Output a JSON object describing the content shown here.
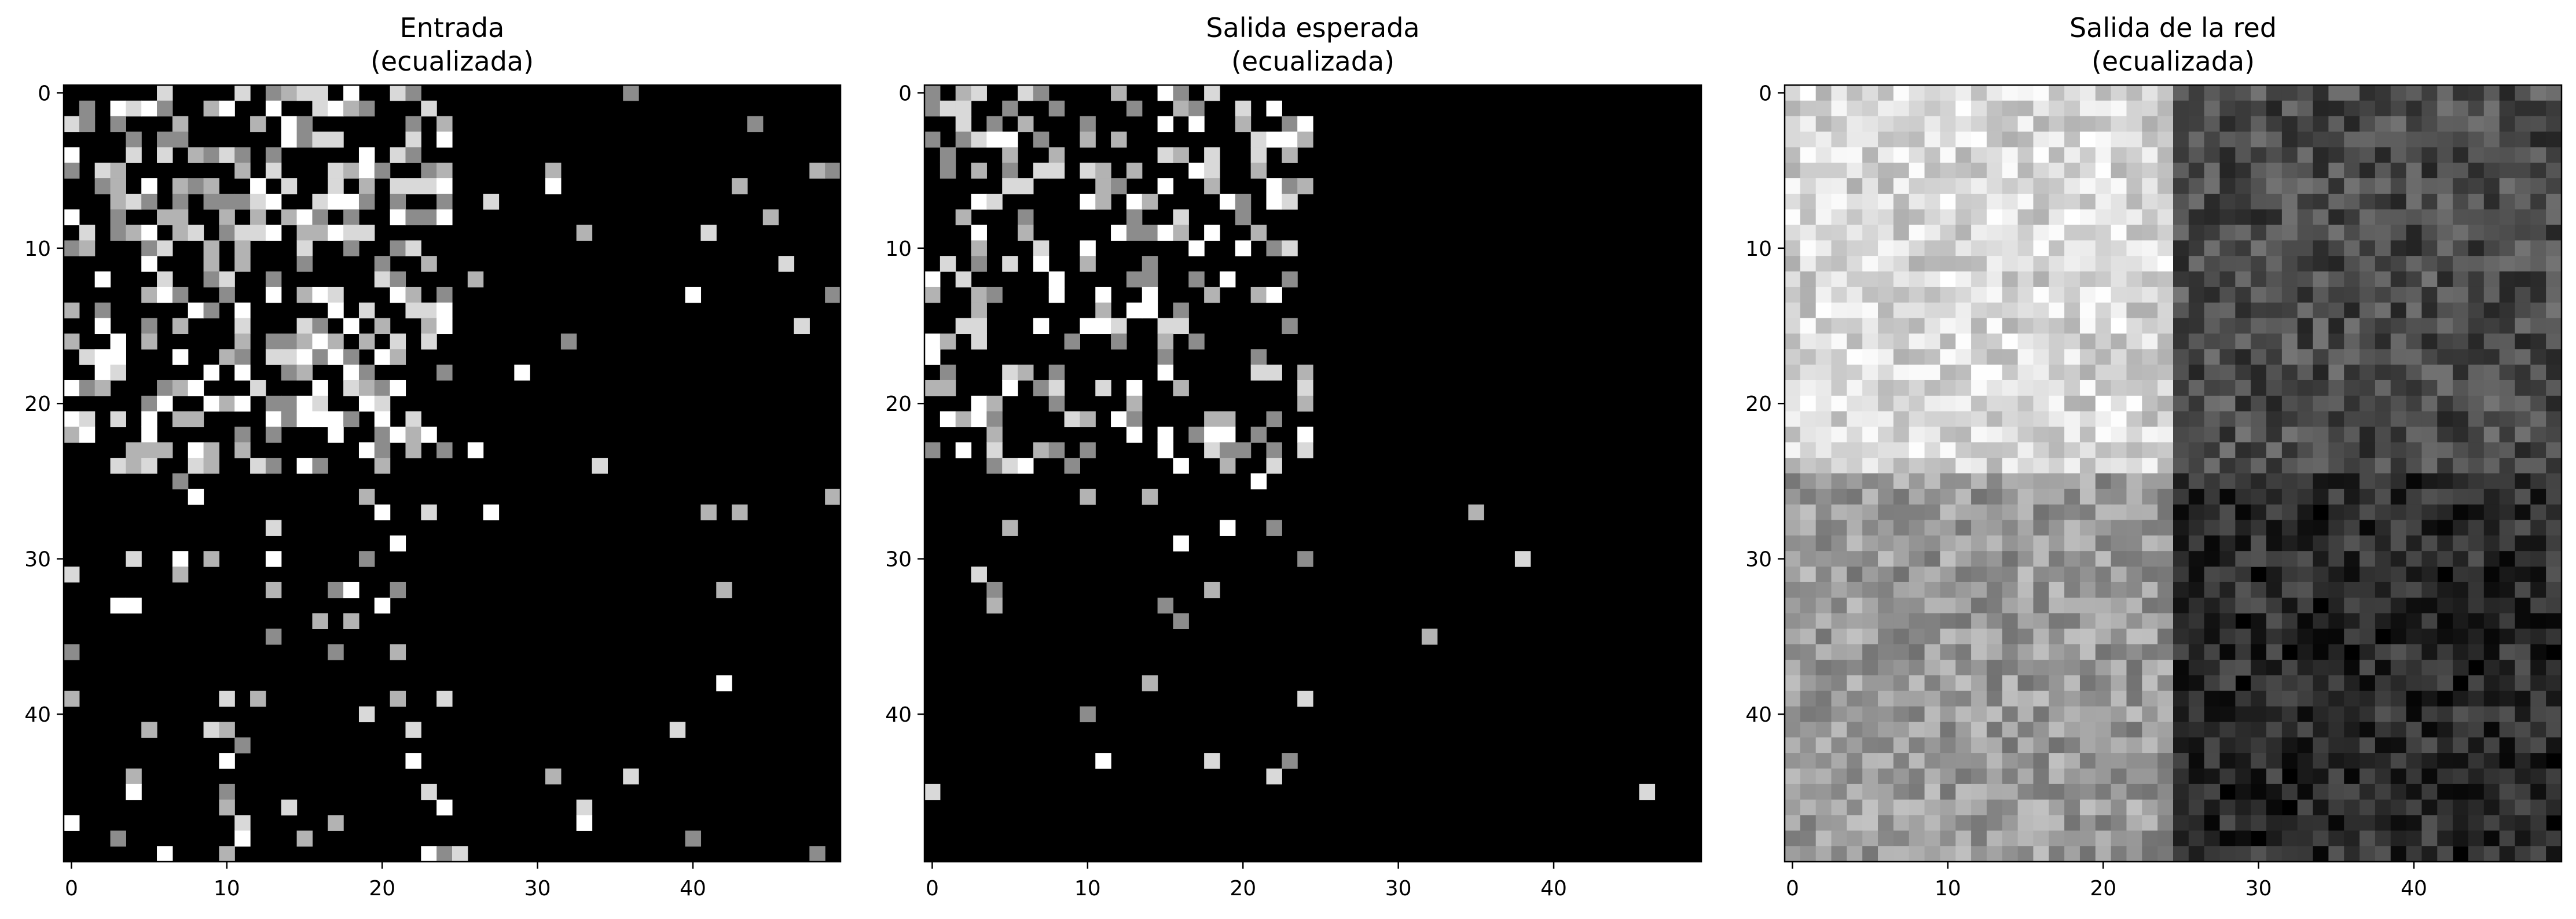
{
  "chart_data": [
    {
      "type": "heatmap",
      "title_lines": [
        "Entrada",
        "(ecualizada)"
      ],
      "colormap": "gray",
      "rows": 50,
      "cols": 50,
      "xticks": [
        0,
        10,
        20,
        30,
        40
      ],
      "yticks": [
        0,
        10,
        20,
        30,
        40
      ],
      "pattern": "sparse",
      "density": {
        "top_left": 0.42,
        "bottom_left": 0.1,
        "top_right": 0.04,
        "bottom_right": 0.025
      },
      "levels": [
        0.55,
        0.7,
        0.85,
        1.0
      ],
      "seed": 11
    },
    {
      "type": "heatmap",
      "title_lines": [
        "Salida esperada",
        "(ecualizada)"
      ],
      "colormap": "gray",
      "rows": 50,
      "cols": 50,
      "xticks": [
        0,
        10,
        20,
        30,
        40
      ],
      "yticks": [
        0,
        10,
        20,
        30,
        40
      ],
      "pattern": "sparse",
      "density": {
        "top_left": 0.33,
        "bottom_left": 0.025,
        "top_right": 0.0,
        "bottom_right": 0.004
      },
      "levels": [
        0.55,
        0.7,
        0.85,
        1.0
      ],
      "seed": 23
    },
    {
      "type": "heatmap",
      "title_lines": [
        "Salida de la red",
        "(ecualizada)"
      ],
      "colormap": "gray",
      "rows": 50,
      "cols": 50,
      "xticks": [
        0,
        10,
        20,
        30,
        40
      ],
      "yticks": [
        0,
        10,
        20,
        30,
        40
      ],
      "pattern": "quadrant",
      "quadrant_means": {
        "top_left": 0.84,
        "bottom_left": 0.6,
        "top_right": 0.3,
        "bottom_right": 0.17
      },
      "noise": 0.16,
      "seed": 37
    }
  ]
}
